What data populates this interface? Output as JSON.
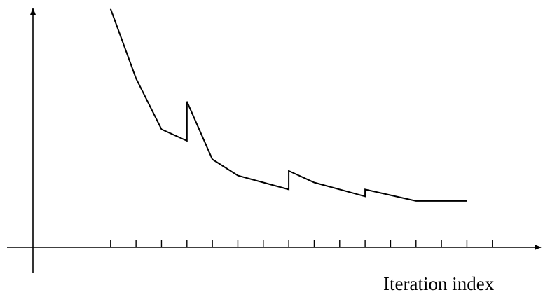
{
  "chart_data": {
    "type": "line",
    "title": "",
    "xlabel": "Iteration index",
    "ylabel": "",
    "grid": false,
    "legend": "none",
    "x_ticks": [
      3,
      4,
      5,
      6,
      7,
      8,
      9,
      10,
      11,
      12,
      13,
      14,
      15,
      16,
      17,
      18
    ],
    "xlim": [
      -0.05,
      19.3
    ],
    "ylim": [
      -0.2,
      10.3
    ],
    "series": [
      {
        "name": "",
        "points": [
          {
            "x": 3.0,
            "y": 10.1
          },
          {
            "x": 4.0,
            "y": 7.1
          },
          {
            "x": 5.0,
            "y": 4.9
          },
          {
            "x": 6.0,
            "y": 4.4
          },
          {
            "x": 6.0,
            "y": 6.1
          },
          {
            "x": 7.0,
            "y": 3.6
          },
          {
            "x": 8.0,
            "y": 2.9
          },
          {
            "x": 10.0,
            "y": 2.3
          },
          {
            "x": 10.0,
            "y": 3.1
          },
          {
            "x": 11.0,
            "y": 2.6
          },
          {
            "x": 13.0,
            "y": 2.0
          },
          {
            "x": 13.0,
            "y": 2.3
          },
          {
            "x": 15.0,
            "y": 1.8
          },
          {
            "x": 17.0,
            "y": 1.8
          }
        ]
      }
    ],
    "colors": {
      "line": "#000000",
      "axis": "#000000",
      "background": "#ffffff"
    }
  }
}
